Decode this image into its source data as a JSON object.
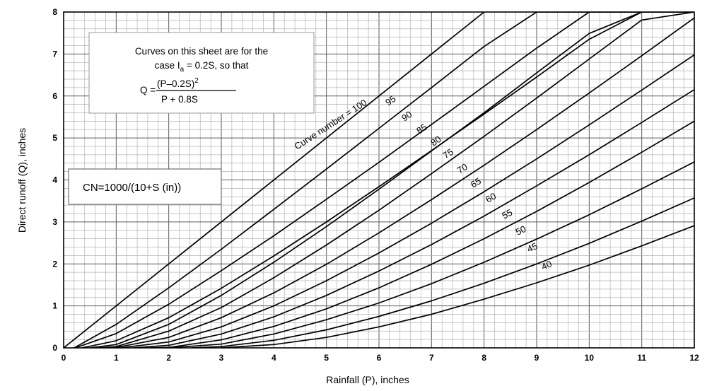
{
  "chart_data": {
    "type": "line",
    "title": "",
    "xlabel": "Rainfall (P), inches",
    "ylabel": "Direct runoff (Q), inches",
    "xlim": [
      0,
      12
    ],
    "ylim": [
      0,
      8
    ],
    "x_ticks": [
      "0",
      "1",
      "2",
      "3",
      "4",
      "5",
      "6",
      "7",
      "8",
      "9",
      "10",
      "11",
      "12"
    ],
    "y_ticks": [
      "0",
      "1",
      "2",
      "3",
      "4",
      "5",
      "6",
      "7",
      "8"
    ],
    "grid": true,
    "grid_minor_step": 0.2,
    "equation": "Q = (P-0.2S)^2 / (P + 0.8S)",
    "series": [
      {
        "name": "Curve number = 100",
        "cn": 100,
        "x": [
          0,
          8
        ],
        "y": [
          0,
          8
        ]
      },
      {
        "name": "95",
        "cn": 95,
        "x": [
          0.2,
          1,
          2,
          3,
          4,
          5,
          6,
          7,
          8,
          9,
          10,
          11,
          12
        ],
        "y": [
          0,
          0.56,
          1.43,
          2.35,
          3.3,
          4.26,
          5.23,
          6.2,
          7.18,
          8,
          8,
          8,
          8
        ]
      },
      {
        "name": "90",
        "cn": 90,
        "x": [
          0.22,
          1,
          2,
          3,
          4,
          5,
          6,
          7,
          8,
          9,
          10,
          11,
          12
        ],
        "y": [
          0,
          0.34,
          1.04,
          1.84,
          2.67,
          3.54,
          4.42,
          5.32,
          6.23,
          7.14,
          8,
          8,
          8
        ]
      },
      {
        "name": "85",
        "cn": 85,
        "x": [
          0.35,
          1,
          2,
          3,
          4,
          5,
          6,
          7,
          8,
          9,
          10,
          11,
          12
        ],
        "y": [
          0,
          0.17,
          0.72,
          1.42,
          2.19,
          3.0,
          3.84,
          4.7,
          5.57,
          6.45,
          7.35,
          8,
          8
        ]
      },
      {
        "name": "80",
        "cn": 80,
        "x": [
          0.5,
          1,
          2,
          3,
          4,
          5,
          6,
          7,
          8,
          9,
          10,
          11,
          12
        ],
        "y": [
          0,
          0.08,
          0.56,
          1.25,
          2.04,
          2.89,
          3.78,
          4.69,
          5.6,
          6.55,
          7.49,
          8,
          8
        ]
      },
      {
        "name": "75",
        "cn": 75,
        "x": [
          0.67,
          1,
          2,
          3,
          4,
          5,
          6,
          7,
          8,
          9,
          10,
          11,
          12
        ],
        "y": [
          0,
          0.03,
          0.4,
          0.96,
          1.67,
          2.45,
          3.28,
          4.15,
          5.04,
          5.95,
          6.88,
          7.81,
          8
        ]
      },
      {
        "name": "70",
        "cn": 70,
        "x": [
          0.86,
          1,
          2,
          3,
          4,
          5,
          6,
          7,
          8,
          9,
          10,
          11,
          12
        ],
        "y": [
          0,
          0.01,
          0.25,
          0.72,
          1.31,
          1.99,
          2.74,
          3.53,
          4.35,
          5.2,
          6.07,
          6.96,
          7.86
        ]
      },
      {
        "name": "65",
        "cn": 65,
        "x": [
          1.08,
          2,
          3,
          4,
          5,
          6,
          7,
          8,
          9,
          10,
          11,
          12
        ],
        "y": [
          0,
          0.14,
          0.5,
          1.0,
          1.6,
          2.26,
          2.97,
          3.72,
          4.5,
          5.31,
          6.14,
          6.98
        ]
      },
      {
        "name": "60",
        "cn": 60,
        "x": [
          1.33,
          2,
          3,
          4,
          5,
          6,
          7,
          8,
          9,
          10,
          11,
          12
        ],
        "y": [
          0,
          0.06,
          0.33,
          0.74,
          1.25,
          1.83,
          2.46,
          3.14,
          3.86,
          4.6,
          5.37,
          6.15
        ]
      },
      {
        "name": "55",
        "cn": 55,
        "x": [
          1.64,
          2,
          3,
          4,
          5,
          6,
          7,
          8,
          9,
          10,
          11,
          12
        ],
        "y": [
          0,
          0.01,
          0.19,
          0.51,
          0.93,
          1.43,
          1.99,
          2.6,
          3.25,
          3.94,
          4.66,
          5.4
        ]
      },
      {
        "name": "50",
        "cn": 50,
        "x": [
          2,
          3,
          4,
          5,
          6,
          7,
          8,
          9,
          10,
          11,
          12
        ],
        "y": [
          0,
          0.09,
          0.33,
          0.67,
          1.07,
          1.53,
          2.04,
          2.59,
          3.17,
          3.79,
          4.43
        ]
      },
      {
        "name": "45",
        "cn": 45,
        "x": [
          2.44,
          3,
          4,
          5,
          6,
          7,
          8,
          9,
          10,
          11,
          12
        ],
        "y": [
          0,
          0.03,
          0.18,
          0.43,
          0.75,
          1.12,
          1.54,
          2.0,
          2.49,
          3.02,
          3.57
        ]
      },
      {
        "name": "40",
        "cn": 40,
        "x": [
          3,
          4,
          5,
          6,
          7,
          8,
          9,
          10,
          11,
          12
        ],
        "y": [
          0,
          0.08,
          0.25,
          0.5,
          0.8,
          1.16,
          1.55,
          1.97,
          2.43,
          2.91
        ]
      }
    ],
    "annotations": {
      "box_line1": "Curves on this sheet are for the",
      "box_line2_pre": "case I",
      "box_line2_sub": "a",
      "box_line2_post": " = 0.2S, so that",
      "formula_lhs": "Q = ",
      "formula_num": "(P–0.2S)",
      "formula_exp": "2",
      "formula_den": "P + 0.8S",
      "cn_formula": "CN=1000/(10+S (in))"
    }
  }
}
